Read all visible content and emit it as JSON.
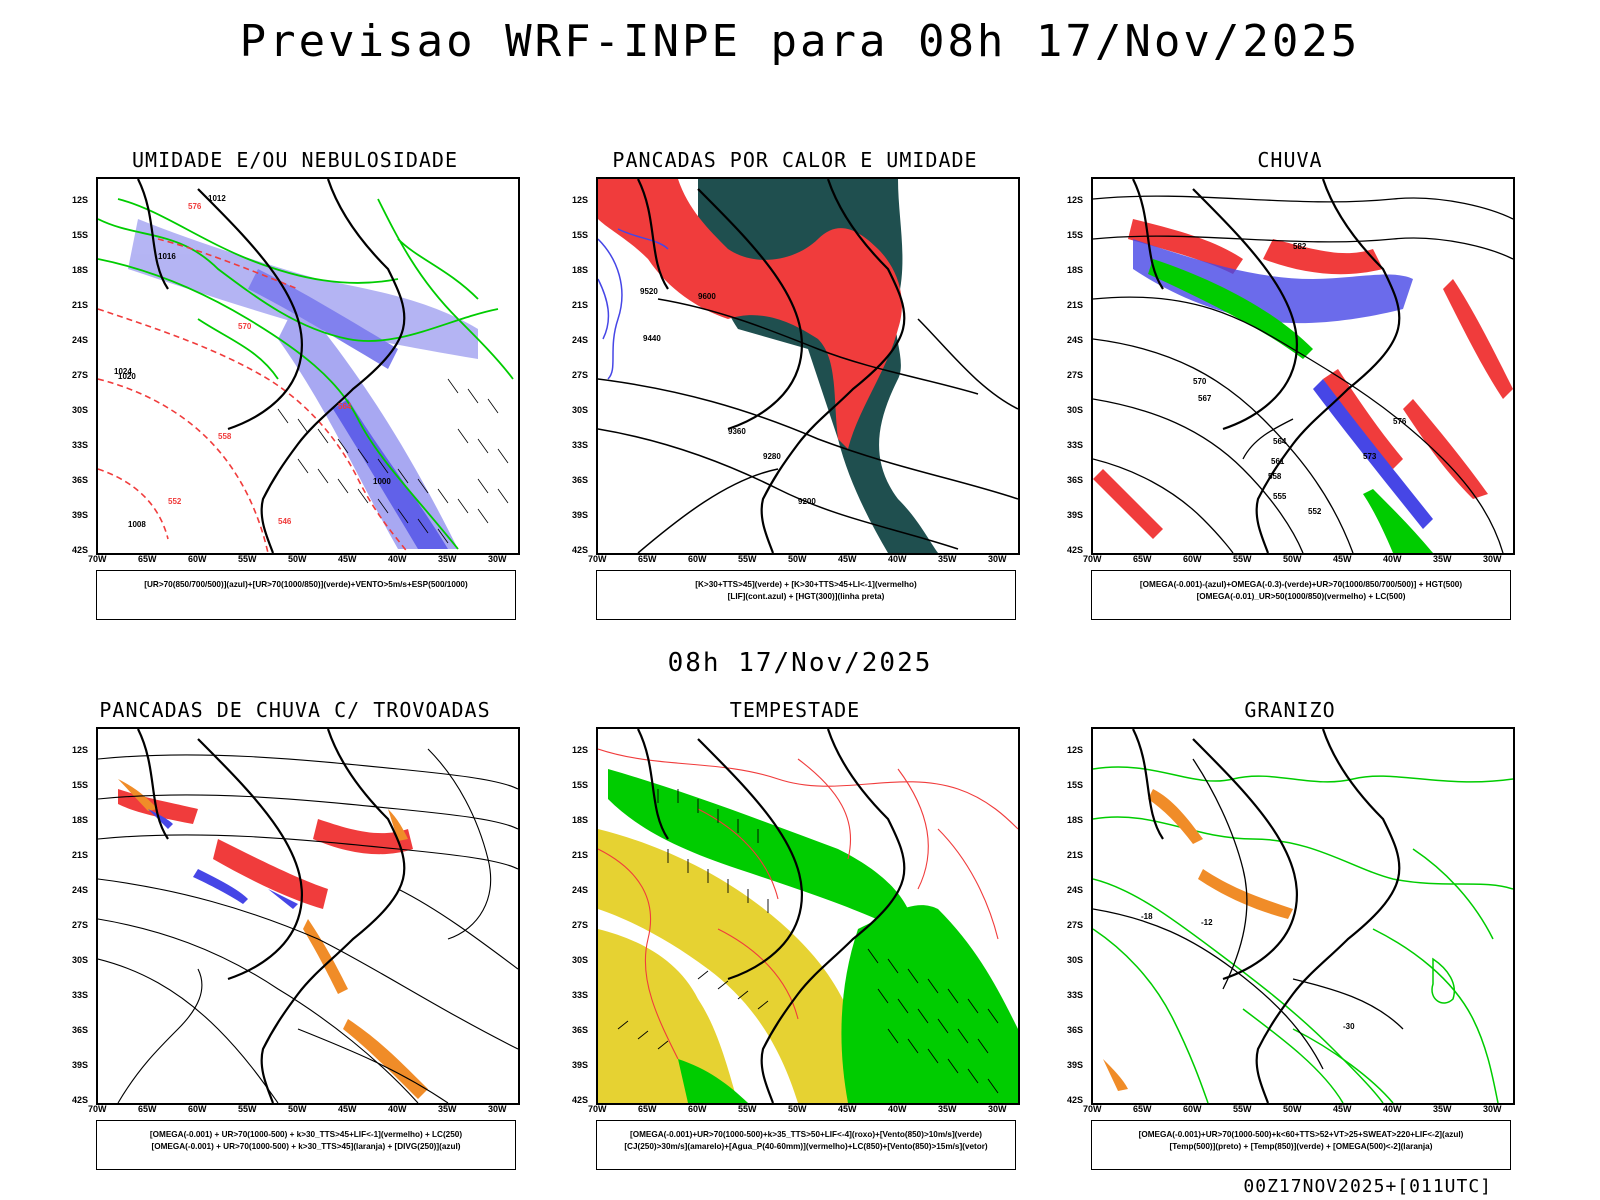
{
  "title": "Previsao WRF-INPE  para 08h 17/Nov/2025",
  "mid_title": "08h 17/Nov/2025",
  "footer": "00Z17NOV2025+[011UTC]",
  "axes": {
    "lat_labels": [
      "12S",
      "15S",
      "18S",
      "21S",
      "24S",
      "27S",
      "30S",
      "33S",
      "36S",
      "39S",
      "42S"
    ],
    "lon_labels": [
      "70W",
      "65W",
      "60W",
      "55W",
      "50W",
      "45W",
      "40W",
      "35W",
      "30W"
    ]
  },
  "colors": {
    "blue_humidity": "#9a9af0",
    "blue_strong": "#4646e6",
    "green": "#00cc00",
    "red": "#f03c3c",
    "dark_teal": "#1f4f4f",
    "orange": "#f08c28",
    "yellow": "#e6d232",
    "contour_black": "#000000"
  },
  "panels": [
    {
      "title": "UMIDADE E/OU NEBULOSIDADE",
      "legend": [
        "[UR>70(850/700/500)](azul)+[UR>70(1000/850)](verde)+VENTO>5m/s+ESP(500/1000)"
      ],
      "contour_labels": [
        "1012",
        "1016",
        "1020",
        "1024",
        "1008",
        "1000",
        "576",
        "570",
        "564",
        "558",
        "552",
        "546"
      ]
    },
    {
      "title": "PANCADAS POR CALOR E UMIDADE",
      "legend": [
        "[K>30+TTS>45](verde)  +  [K>30+TTS>45+LI<-1](vermelho)",
        "[LIF](cont.azul)  +  [HGT(300)](linha preta)"
      ],
      "contour_labels": [
        "9600",
        "9520",
        "9440",
        "9360",
        "9280",
        "9200"
      ]
    },
    {
      "title": "CHUVA",
      "legend": [
        "[OMEGA(-0.001)-(azul)+OMEGA(-0.3)-(verde)+UR>70(1000/850/700/500)]  +  HGT(500)",
        "[OMEGA(-0.01)_UR>50(1000/850)(vermelho)  +  LC(500)"
      ],
      "contour_labels": [
        "582",
        "576",
        "573",
        "570",
        "567",
        "564",
        "561",
        "558",
        "555",
        "552"
      ]
    },
    {
      "title": "PANCADAS DE CHUVA C/ TROVOADAS",
      "legend": [
        "[OMEGA(-0.001)  +  UR>70(1000-500)  +  k>30_TTS>45+LIF<-1](vermelho)  +  LC(250)",
        "[OMEGA(-0.001)  +  UR>70(1000-500)  +  k>30_TTS>45](laranja)  +  [DIVG(250)](azul)"
      ],
      "contour_labels": []
    },
    {
      "title": "TEMPESTADE",
      "legend": [
        "[OMEGA(-0.001)+UR>70(1000-500)+k>35_TTS>50+LIF<-4](roxo)+[Vento(850)>10m/s](verde)",
        "[CJ(250)>30m/s](amarelo)+[Agua_P(40-60mm)](vermelho)+LC(850)+[Vento(850)>15m/s](vetor)"
      ],
      "contour_labels": []
    },
    {
      "title": "GRANIZO",
      "legend": [
        "[OMEGA(-0.001)+UR>70(1000-500)+k<60+TTS>52+VT>25+SWEAT>220+LIF<-2](azul)",
        "[Temp(500)](preto)  +  [Temp(850)](verde)  +  [OMEGA(500)<-2](laranja)"
      ],
      "contour_labels": [
        "-18",
        "-12",
        "-30"
      ]
    }
  ]
}
